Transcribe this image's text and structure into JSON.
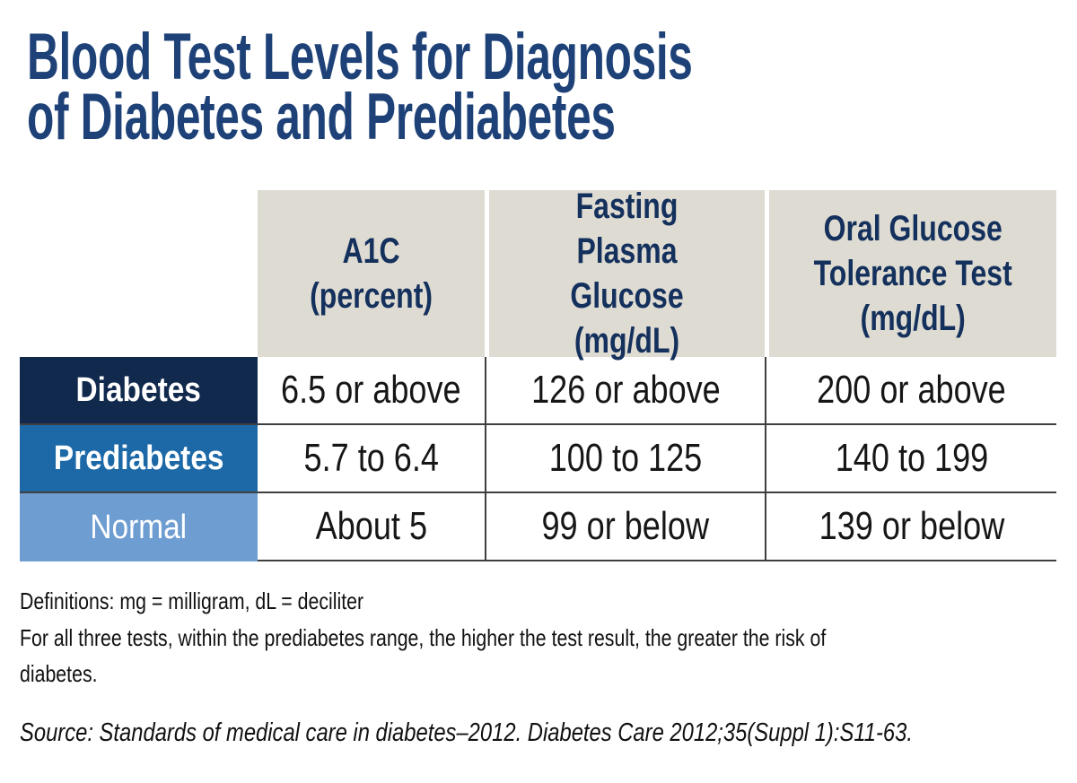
{
  "title": "Blood Test Levels for Diagnosis\nof Diabetes and Prediabetes",
  "table": {
    "headers": {
      "a1c": "A1C\n(percent)",
      "fpg": "Fasting\nPlasma Glucose\n(mg/dL)",
      "ogtt": "Oral Glucose\nTolerance Test\n(mg/dL)"
    },
    "rows": [
      {
        "label": "Diabetes",
        "a1c": "6.5 or above",
        "fpg": "126 or above",
        "ogtt": "200 or above"
      },
      {
        "label": "Prediabetes",
        "a1c": "5.7 to 6.4",
        "fpg": "100 to 125",
        "ogtt": "140 to 199"
      },
      {
        "label": "Normal",
        "a1c": "About 5",
        "fpg": "99 or below",
        "ogtt": "139 or below"
      }
    ]
  },
  "notes": {
    "definitions": "Definitions: mg = milligram, dL = deciliter",
    "note": "For all three tests, within the prediabetes range, the higher the test result, the greater the risk of\ndiabetes.",
    "source": "Source: Standards of medical care in diabetes–2012. Diabetes Care 2012;35(Suppl 1):S11-63."
  },
  "colors": {
    "title_text": "#1e4278",
    "header_bg": "#dedbd2",
    "header_text": "#14305c",
    "row_diabetes_bg": "#10294d",
    "row_prediabetes_bg": "#1d69a7",
    "row_normal_bg": "#6d9dd1",
    "row_label_text": "#ffffff",
    "data_text": "#161616",
    "grid_border": "#3f3f3f",
    "page_bg": "#ffffff"
  }
}
